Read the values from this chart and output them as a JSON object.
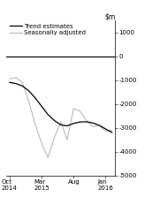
{
  "ylim": [
    -5000,
    1500
  ],
  "yticks": [
    1000,
    0,
    -1000,
    -2000,
    -3000,
    -4000,
    -5000
  ],
  "ytick_labels": [
    "1000",
    "0",
    "-1000",
    "-2000",
    "-3000",
    "-4000",
    "-5000"
  ],
  "xtick_positions": [
    0,
    5,
    10,
    15
  ],
  "xtick_labels": [
    "Oct\n2014",
    "Mar\n2015",
    "Aug",
    "Jan\n2016"
  ],
  "trend_color": "#000000",
  "seasonal_color": "#b0b0b0",
  "legend_entries": [
    "Trend estimates",
    "Seasonally adjusted"
  ],
  "trend_x": [
    0,
    1,
    2,
    3,
    4,
    5,
    6,
    7,
    8,
    9,
    10,
    11,
    12,
    13,
    14,
    15,
    16
  ],
  "trend_y": [
    -1100,
    -1150,
    -1250,
    -1450,
    -1750,
    -2100,
    -2450,
    -2700,
    -2880,
    -2920,
    -2820,
    -2760,
    -2750,
    -2800,
    -2900,
    -3050,
    -3200
  ],
  "seasonal_x": [
    0,
    1,
    2,
    3,
    4,
    5,
    6,
    7,
    8,
    9,
    10,
    11,
    12,
    13,
    14,
    15,
    16
  ],
  "seasonal_y": [
    -950,
    -900,
    -1100,
    -1900,
    -2850,
    -3650,
    -4250,
    -3400,
    -2750,
    -3500,
    -2200,
    -2300,
    -2700,
    -2950,
    -2900,
    -3150,
    -3100
  ],
  "background_color": "#ffffff",
  "figsize": [
    1.81,
    2.31
  ],
  "dpi": 100
}
